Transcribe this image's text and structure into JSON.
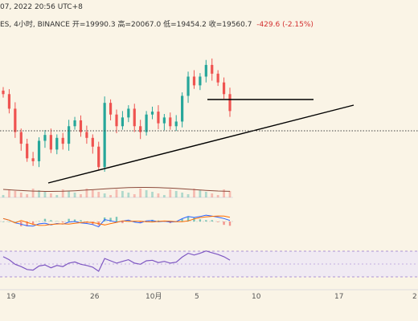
{
  "header": {
    "line1": "07, 2022 20:56 UTC+8",
    "line2_prefix": "ES, 4小时, BINANCE  开=19990.3  高=20067.0  低=19454.2  收=19560.7",
    "line2_change": "-429.6 (-2.15%)"
  },
  "x_axis": {
    "labels": [
      "19",
      "26",
      "10月",
      "5",
      "10",
      "17",
      "2"
    ]
  },
  "colors": {
    "background": "#faf4e6",
    "up": "#26a69a",
    "down": "#ef5350",
    "rsi_line": "#7e57c2",
    "rsi_band": "#ede7f6",
    "trend_line": "#000000",
    "ma_line": "#8d4a3b"
  },
  "chart_data": {
    "type": "candlestick",
    "panels": [
      "price",
      "volume",
      "macd",
      "rsi"
    ],
    "price_close_series": [
      19850,
      19600,
      19200,
      19000,
      18750,
      18700,
      19050,
      19150,
      18900,
      19100,
      19000,
      19300,
      19400,
      19200,
      19100,
      18950,
      18600,
      19700,
      19500,
      19300,
      19450,
      19600,
      19300,
      19200,
      19500,
      19550,
      19350,
      19450,
      19300,
      19380,
      19820,
      20150,
      20000,
      20150,
      20350,
      20200,
      20050,
      19850,
      19560
    ],
    "last_ohlc": {
      "open": 19990.3,
      "high": 20067.0,
      "low": 19454.2,
      "close": 19560.7
    },
    "resistance_level": 19850
  }
}
